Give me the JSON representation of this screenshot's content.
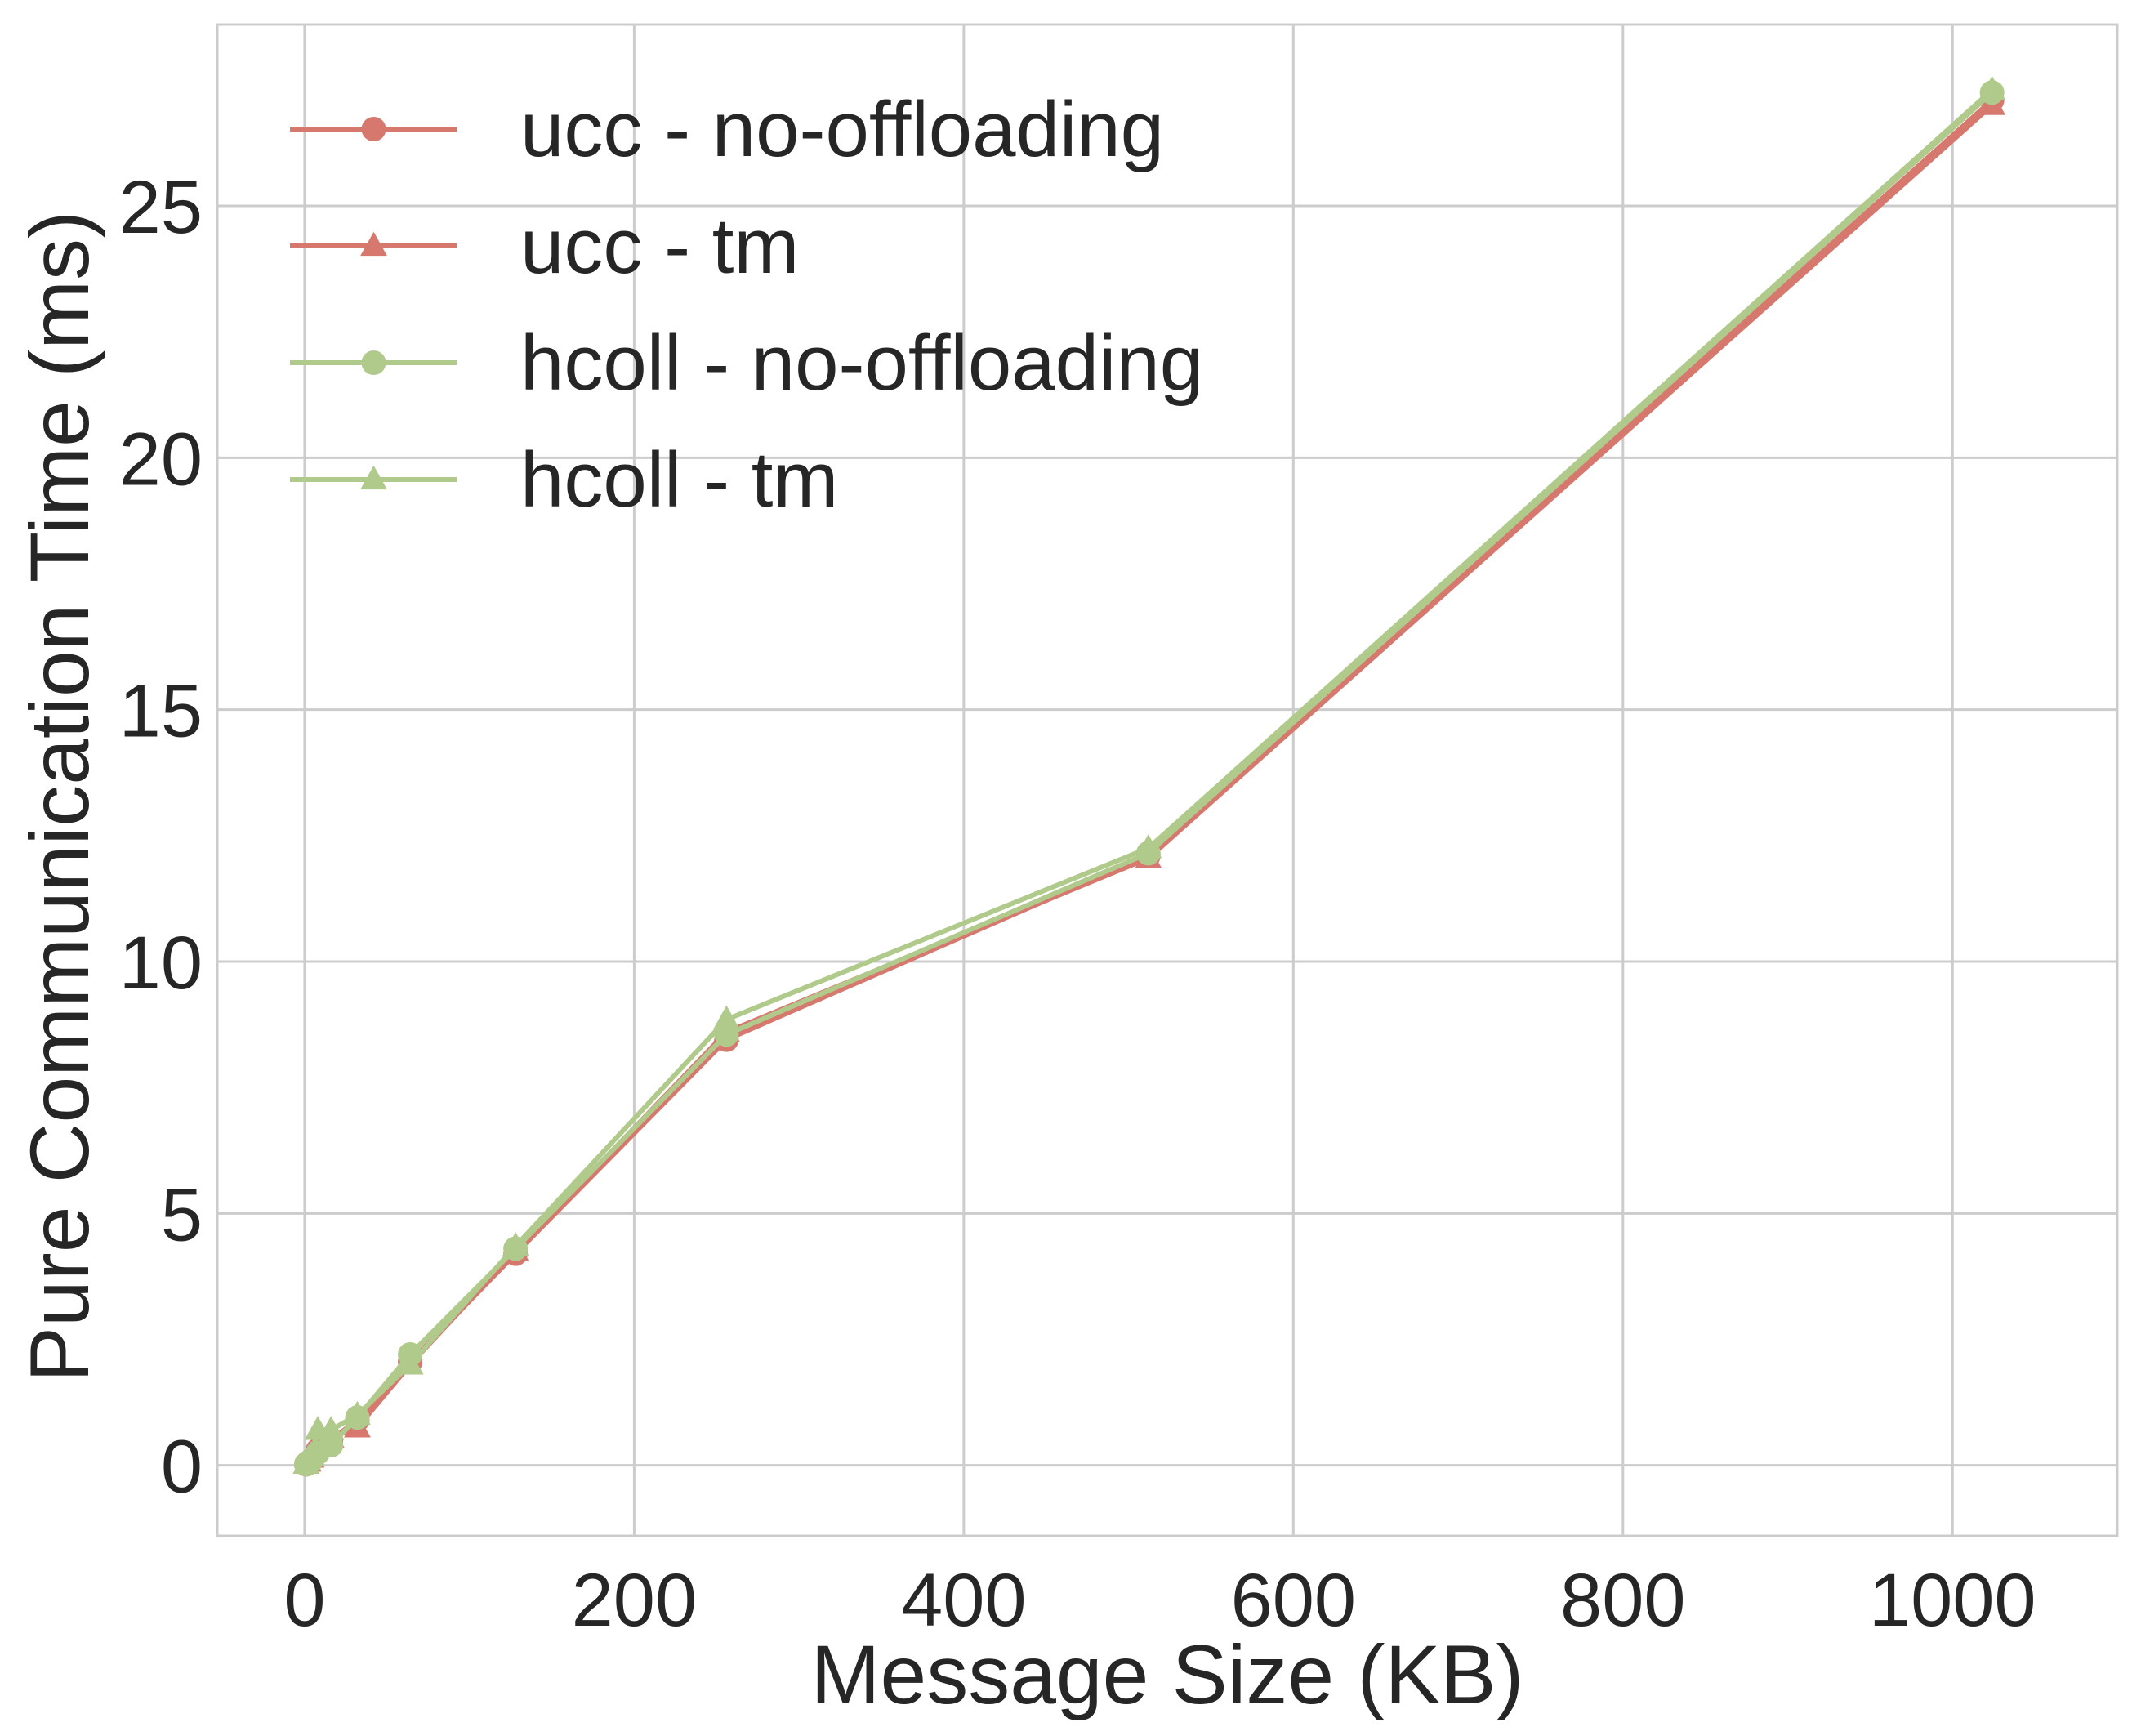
{
  "chart_data": {
    "type": "line",
    "title": "",
    "xlabel": "Message Size (KB)",
    "ylabel": "Pure Communication Time (ms)",
    "xlim": [
      -53,
      1100
    ],
    "ylim": [
      -1.4,
      28.6
    ],
    "xticks": [
      0,
      200,
      400,
      600,
      800,
      1000
    ],
    "yticks": [
      0,
      5,
      10,
      15,
      20,
      25
    ],
    "grid": true,
    "legend_position": "upper-left",
    "x": [
      1,
      2,
      4,
      8,
      16,
      32,
      64,
      128,
      256,
      512,
      1024
    ],
    "series": [
      {
        "name": "ucc - no-offloading",
        "color": "#d7786e",
        "marker": "circle",
        "values": [
          0.02,
          0.05,
          0.1,
          0.3,
          0.5,
          0.9,
          2.05,
          4.2,
          8.45,
          12.1,
          27.1
        ]
      },
      {
        "name": "ucc - tm",
        "color": "#d7786e",
        "marker": "triangle",
        "values": [
          0.03,
          0.07,
          0.15,
          0.45,
          0.55,
          0.75,
          2.0,
          4.25,
          8.6,
          12.05,
          27.0
        ]
      },
      {
        "name": "hcoll - no-offloading",
        "color": "#b0ca8c",
        "marker": "circle",
        "values": [
          0.02,
          0.05,
          0.1,
          0.25,
          0.4,
          0.95,
          2.2,
          4.3,
          8.55,
          12.15,
          27.25
        ]
      },
      {
        "name": "hcoll - tm",
        "color": "#b0ca8c",
        "marker": "triangle",
        "values": [
          0.03,
          0.1,
          0.2,
          0.7,
          0.7,
          1.0,
          2.0,
          4.35,
          8.85,
          12.25,
          27.3
        ]
      }
    ]
  }
}
